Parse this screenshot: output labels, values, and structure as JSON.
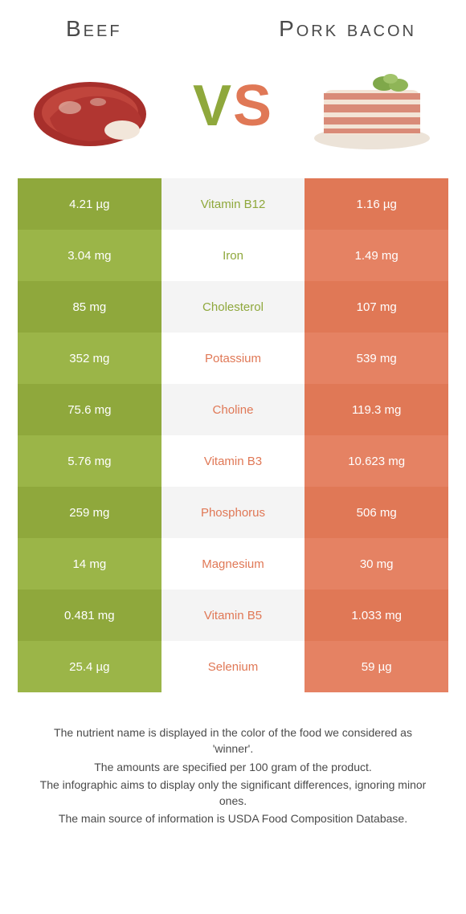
{
  "header": {
    "left_title": "Beef",
    "right_title": "Pork bacon",
    "vs_v": "V",
    "vs_s": "S"
  },
  "colors": {
    "left_a": "#8fa83c",
    "left_b": "#9bb548",
    "mid_a": "#f4f4f4",
    "mid_b": "#ffffff",
    "right_a": "#e07856",
    "right_b": "#e58263",
    "label_green": "#8fa83c",
    "label_orange": "#e07856",
    "title_text": "#4a4a4a"
  },
  "rows": [
    {
      "left": "4.21 µg",
      "label": "Vitamin B12",
      "right": "1.16 µg",
      "winner": "left"
    },
    {
      "left": "3.04 mg",
      "label": "Iron",
      "right": "1.49 mg",
      "winner": "left"
    },
    {
      "left": "85 mg",
      "label": "Cholesterol",
      "right": "107 mg",
      "winner": "left"
    },
    {
      "left": "352 mg",
      "label": "Potassium",
      "right": "539 mg",
      "winner": "right"
    },
    {
      "left": "75.6 mg",
      "label": "Choline",
      "right": "119.3 mg",
      "winner": "right"
    },
    {
      "left": "5.76 mg",
      "label": "Vitamin B3",
      "right": "10.623 mg",
      "winner": "right"
    },
    {
      "left": "259 mg",
      "label": "Phosphorus",
      "right": "506 mg",
      "winner": "right"
    },
    {
      "left": "14 mg",
      "label": "Magnesium",
      "right": "30 mg",
      "winner": "right"
    },
    {
      "left": "0.481 mg",
      "label": "Vitamin B5",
      "right": "1.033 mg",
      "winner": "right"
    },
    {
      "left": "25.4 µg",
      "label": "Selenium",
      "right": "59 µg",
      "winner": "right"
    }
  ],
  "footer": {
    "line1": "The nutrient name is displayed in the color of the food we considered as 'winner'.",
    "line2": "The amounts are specified per 100 gram of the product.",
    "line3": "The infographic aims to display only the significant differences, ignoring minor ones.",
    "line4": "The main source of information is USDA Food Composition Database."
  }
}
